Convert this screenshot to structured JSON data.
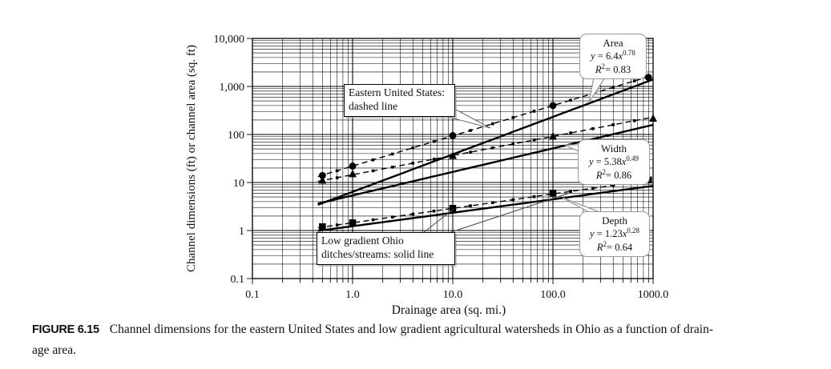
{
  "figure_caption": {
    "tag": "FIGURE 6.15",
    "line1": "Channel dimensions for the eastern United States and low gradient agricultural watersheds in Ohio as a function of drain-",
    "line2": "age area."
  },
  "annotation_boxes": {
    "eastern": {
      "line1": "Eastern United States:",
      "line2": "dashed line"
    },
    "ohio": {
      "line1": "Low gradient Ohio",
      "line2": "ditches/streams: solid line"
    }
  },
  "callouts": [
    {
      "title": "Area",
      "eq_y": "y",
      "eq_mid": " = 6.4",
      "eq_x": "x",
      "eq_exp": "0.78",
      "r2_r": "R",
      "r2_sup": "2",
      "r2_rest": "= 0.83"
    },
    {
      "title": "Width",
      "eq_y": "y",
      "eq_mid": " = 5.38",
      "eq_x": "x",
      "eq_exp": "0.49",
      "r2_r": "R",
      "r2_sup": "2",
      "r2_rest": "= 0.86"
    },
    {
      "title": "Depth",
      "eq_y": "y",
      "eq_mid": " = 1.23",
      "eq_x": "x",
      "eq_exp": "0.28",
      "r2_r": "R",
      "r2_sup": "2",
      "r2_rest": "= 0.64"
    }
  ],
  "chart_data": {
    "type": "line",
    "x_scale": "log",
    "y_scale": "log",
    "xlim": [
      0.1,
      1000
    ],
    "ylim": [
      0.1,
      10000
    ],
    "xlabel": "Drainage area (sq. mi.)",
    "ylabel": "Channel dimensions (ft) or channel area (sq. ft)",
    "grid": "log minor gridlines on, both axes",
    "x_ticks": [
      {
        "v": 0.1,
        "label": "0.1"
      },
      {
        "v": 1,
        "label": "1.0"
      },
      {
        "v": 10,
        "label": "10.0"
      },
      {
        "v": 100,
        "label": "100.0"
      },
      {
        "v": 1000,
        "label": "1000.0"
      }
    ],
    "y_ticks": [
      {
        "v": 10000,
        "label": "10,000"
      },
      {
        "v": 1000,
        "label": "1,000"
      },
      {
        "v": 100,
        "label": "100"
      },
      {
        "v": 10,
        "label": "10"
      },
      {
        "v": 1,
        "label": "1"
      },
      {
        "v": 0.1,
        "label": "0.1"
      }
    ],
    "series": [
      {
        "name": "Area - low gradient Ohio ditches/streams",
        "group": "ohio",
        "line": "solid",
        "equation": "y = 6.4x^0.78",
        "r2": 0.83,
        "power_law": {
          "coef": 6.4,
          "exp": 0.78
        },
        "x_range": [
          0.45,
          1000
        ]
      },
      {
        "name": "Width - low gradient Ohio ditches/streams",
        "group": "ohio",
        "line": "solid",
        "equation": "y = 5.38x^0.49",
        "r2": 0.86,
        "power_law": {
          "coef": 5.38,
          "exp": 0.49
        },
        "x_range": [
          0.45,
          1000
        ]
      },
      {
        "name": "Depth - low gradient Ohio ditches/streams",
        "group": "ohio",
        "line": "solid",
        "equation": "y = 1.23x^0.28",
        "r2": 0.64,
        "power_law": {
          "coef": 1.23,
          "exp": 0.28
        },
        "x_range": [
          0.45,
          1000
        ]
      },
      {
        "name": "Area - eastern United States",
        "group": "eastern",
        "line": "dashed",
        "marker": "circle",
        "power_law": {
          "coef": 22,
          "exp": 0.63
        },
        "x_range": [
          0.45,
          1000
        ],
        "points": [
          [
            0.5,
            14
          ],
          [
            1,
            22
          ],
          [
            10,
            95
          ],
          [
            100,
            400
          ],
          [
            900,
            1550
          ]
        ],
        "dot_xs": [
          0.7,
          1.6,
          2.5,
          4,
          6.5,
          15,
          25,
          40,
          65,
          150,
          250,
          400,
          650
        ]
      },
      {
        "name": "Width - eastern United States",
        "group": "eastern",
        "line": "dashed",
        "marker": "triangle",
        "power_law": {
          "coef": 14.5,
          "exp": 0.4
        },
        "x_range": [
          0.45,
          1000
        ],
        "points": [
          [
            0.5,
            11
          ],
          [
            1,
            15
          ],
          [
            10,
            36
          ],
          [
            100,
            91
          ],
          [
            1000,
            215
          ]
        ],
        "dot_xs": [
          0.7,
          1.6,
          2.5,
          4,
          6.5,
          15,
          25,
          40,
          65,
          150,
          250,
          400,
          650
        ]
      },
      {
        "name": "Depth - eastern United States",
        "group": "eastern",
        "line": "dashed",
        "marker": "square",
        "power_law": {
          "coef": 1.45,
          "exp": 0.3
        },
        "x_range": [
          0.45,
          1000
        ],
        "points": [
          [
            0.5,
            1.2
          ],
          [
            1,
            1.45
          ],
          [
            10,
            2.9
          ],
          [
            100,
            6.0
          ],
          [
            900,
            11.3
          ]
        ],
        "dot_xs": [
          0.7,
          1.6,
          2.5,
          4,
          6.5,
          15,
          25,
          40,
          65,
          150,
          250,
          400,
          650
        ]
      }
    ]
  }
}
